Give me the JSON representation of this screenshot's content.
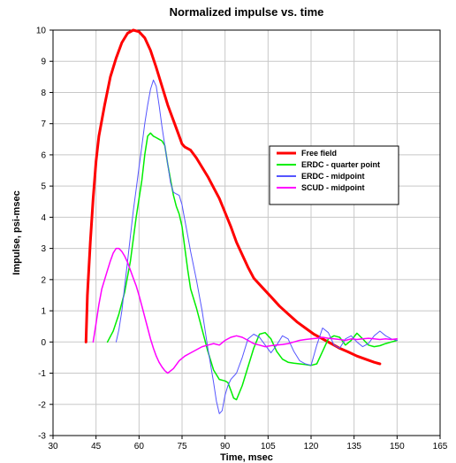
{
  "chart_data": {
    "type": "line",
    "title": "Normalized impulse vs. time",
    "xlabel": "Time, msec",
    "ylabel": "Impulse, psi-msec",
    "xlim": [
      30,
      165
    ],
    "ylim": [
      -3,
      10
    ],
    "xticks": [
      30,
      45,
      60,
      75,
      90,
      105,
      120,
      135,
      150,
      165
    ],
    "yticks": [
      -3,
      -2,
      -1,
      0,
      1,
      2,
      3,
      4,
      5,
      6,
      7,
      8,
      9,
      10
    ],
    "grid": true,
    "legend_position": "right",
    "series": [
      {
        "name": "Free field",
        "color": "#ff0000",
        "width": 3,
        "x": [
          41.5,
          42,
          43,
          44,
          45,
          46,
          48,
          50,
          52,
          54,
          56,
          58,
          60,
          62,
          64,
          66,
          68,
          70,
          72,
          74,
          75,
          76,
          78,
          80,
          82,
          84,
          86,
          88,
          90,
          92,
          94,
          96,
          98,
          100,
          103,
          106,
          109,
          112,
          115,
          118,
          121,
          124,
          127,
          130,
          133,
          136,
          139,
          142,
          144
        ],
        "y": [
          0,
          1.5,
          3.2,
          4.6,
          5.8,
          6.6,
          7.6,
          8.5,
          9.1,
          9.6,
          9.9,
          10.0,
          9.95,
          9.75,
          9.35,
          8.8,
          8.2,
          7.6,
          7.1,
          6.6,
          6.35,
          6.25,
          6.15,
          5.9,
          5.6,
          5.3,
          4.95,
          4.6,
          4.15,
          3.7,
          3.2,
          2.8,
          2.4,
          2.05,
          1.75,
          1.45,
          1.15,
          0.9,
          0.65,
          0.45,
          0.25,
          0.1,
          -0.05,
          -0.2,
          -0.32,
          -0.45,
          -0.55,
          -0.65,
          -0.7
        ]
      },
      {
        "name": "ERDC - quarter point",
        "color": "#00ee00",
        "width": 1.5,
        "x": [
          49,
          51,
          53,
          55,
          57,
          59,
          61,
          62,
          63,
          64,
          65,
          66,
          67,
          68,
          69,
          70,
          71,
          72,
          73,
          74,
          75,
          76,
          77,
          78,
          80,
          82,
          84,
          86,
          88,
          90,
          91,
          92,
          93,
          94,
          96,
          98,
          100,
          102,
          104,
          106,
          108,
          110,
          112,
          114,
          116,
          118,
          120,
          122,
          124,
          126,
          128,
          130,
          132,
          134,
          136,
          138,
          140,
          142,
          144,
          146,
          148,
          150
        ],
        "y": [
          0,
          0.35,
          0.9,
          1.6,
          2.6,
          4.0,
          5.2,
          6.0,
          6.6,
          6.7,
          6.6,
          6.55,
          6.5,
          6.45,
          6.3,
          5.7,
          5.2,
          4.7,
          4.35,
          4.1,
          3.7,
          3.0,
          2.3,
          1.7,
          1.1,
          0.4,
          -0.3,
          -0.9,
          -1.2,
          -1.25,
          -1.3,
          -1.55,
          -1.8,
          -1.85,
          -1.4,
          -0.8,
          -0.2,
          0.25,
          0.3,
          0.1,
          -0.3,
          -0.55,
          -0.65,
          -0.68,
          -0.7,
          -0.72,
          -0.75,
          -0.7,
          -0.3,
          0.1,
          0.2,
          0.15,
          -0.1,
          0.05,
          0.28,
          0.1,
          -0.1,
          -0.15,
          -0.12,
          -0.05,
          0.0,
          0.05
        ]
      },
      {
        "name": "ERDC - midpoint",
        "color": "#5555ff",
        "width": 1,
        "x": [
          52,
          53,
          54,
          55,
          56,
          57,
          58,
          59,
          60,
          61,
          62,
          63,
          64,
          65,
          66,
          67,
          68,
          69,
          70,
          71,
          72,
          73,
          74,
          75,
          76,
          77,
          78,
          80,
          82,
          84,
          86,
          87,
          88,
          89,
          90,
          91,
          92,
          94,
          96,
          98,
          100,
          102,
          104,
          106,
          108,
          110,
          112,
          114,
          116,
          118,
          120,
          122,
          124,
          126,
          128,
          130,
          132,
          134,
          136,
          138,
          140,
          142,
          144,
          146,
          148,
          150
        ],
        "y": [
          0,
          0.4,
          1.0,
          1.8,
          2.6,
          3.4,
          4.2,
          4.9,
          5.6,
          6.3,
          7.0,
          7.6,
          8.1,
          8.4,
          8.2,
          7.6,
          6.9,
          6.3,
          5.7,
          5.1,
          4.8,
          4.75,
          4.7,
          4.4,
          3.9,
          3.4,
          2.9,
          2.0,
          1.0,
          -0.2,
          -1.3,
          -1.9,
          -2.3,
          -2.2,
          -1.7,
          -1.4,
          -1.2,
          -1.0,
          -0.5,
          0.1,
          0.25,
          0.15,
          -0.1,
          -0.35,
          -0.1,
          0.2,
          0.1,
          -0.3,
          -0.6,
          -0.7,
          -0.75,
          -0.1,
          0.45,
          0.3,
          -0.1,
          -0.2,
          0.1,
          0.2,
          0.0,
          -0.15,
          -0.05,
          0.2,
          0.35,
          0.2,
          0.1,
          0.05
        ]
      },
      {
        "name": "SCUD - midpoint",
        "color": "#ff00ff",
        "width": 1.5,
        "x": [
          44,
          45,
          46,
          47,
          48,
          49,
          50,
          51,
          52,
          53,
          54,
          55,
          56,
          57,
          58,
          59,
          60,
          61,
          62,
          63,
          64,
          65,
          66,
          67,
          68,
          69,
          70,
          72,
          74,
          76,
          78,
          80,
          82,
          84,
          86,
          88,
          90,
          92,
          94,
          96,
          98,
          100,
          102,
          104,
          106,
          108,
          110,
          112,
          114,
          116,
          118,
          120,
          122,
          124,
          126,
          128,
          130,
          132,
          134,
          136,
          138,
          140,
          142,
          144,
          146,
          148,
          150
        ],
        "y": [
          0,
          0.6,
          1.2,
          1.7,
          2.0,
          2.3,
          2.6,
          2.85,
          3.0,
          3.0,
          2.9,
          2.75,
          2.55,
          2.3,
          2.05,
          1.8,
          1.5,
          1.15,
          0.8,
          0.45,
          0.1,
          -0.2,
          -0.45,
          -0.65,
          -0.8,
          -0.92,
          -1.0,
          -0.85,
          -0.6,
          -0.45,
          -0.35,
          -0.25,
          -0.15,
          -0.1,
          -0.05,
          -0.1,
          0.05,
          0.15,
          0.2,
          0.15,
          0.05,
          -0.05,
          -0.1,
          -0.15,
          -0.12,
          -0.1,
          -0.08,
          -0.05,
          0.0,
          0.05,
          0.08,
          0.1,
          0.12,
          0.15,
          0.12,
          0.1,
          0.08,
          0.05,
          0.1,
          0.08,
          0.1,
          0.12,
          0.1,
          0.08,
          0.1,
          0.08,
          0.1
        ]
      }
    ]
  }
}
